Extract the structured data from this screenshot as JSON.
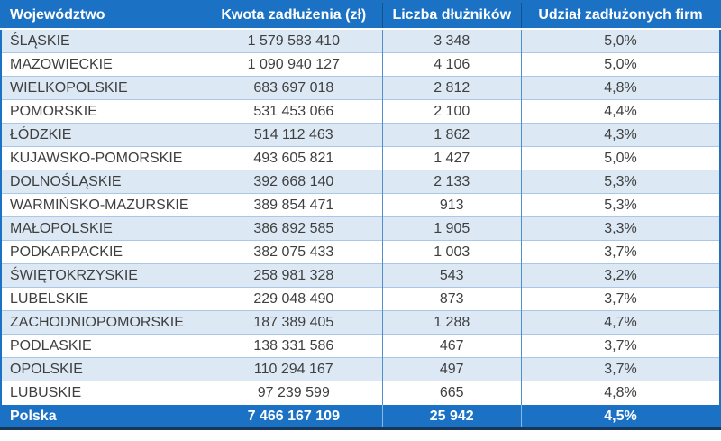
{
  "chart_data": {
    "type": "table",
    "columns": [
      "Województwo",
      "Kwota zadłużenia (zł)",
      "Liczba dłużników",
      "Udział zadłużonych firm"
    ],
    "rows": [
      [
        "ŚLĄSKIE",
        "1 579 583 410",
        "3 348",
        "5,0%"
      ],
      [
        "MAZOWIECKIE",
        "1 090 940 127",
        "4 106",
        "5,0%"
      ],
      [
        "WIELKOPOLSKIE",
        "683 697 018",
        "2 812",
        "4,8%"
      ],
      [
        "POMORSKIE",
        "531 453 066",
        "2 100",
        "4,4%"
      ],
      [
        "ŁÓDZKIE",
        "514 112 463",
        "1 862",
        "4,3%"
      ],
      [
        "KUJAWSKO-POMORSKIE",
        "493 605 821",
        "1 427",
        "5,0%"
      ],
      [
        "DOLNOŚLĄSKIE",
        "392 668 140",
        "2 133",
        "5,3%"
      ],
      [
        "WARMIŃSKO-MAZURSKIE",
        "389 854 471",
        "913",
        "5,3%"
      ],
      [
        "MAŁOPOLSKIE",
        "386 892 585",
        "1 905",
        "3,3%"
      ],
      [
        "PODKARPACKIE",
        "382 075 433",
        "1 003",
        "3,7%"
      ],
      [
        "ŚWIĘTOKRZYSKIE",
        "258 981 328",
        "543",
        "3,2%"
      ],
      [
        "LUBELSKIE",
        "229 048 490",
        "873",
        "3,7%"
      ],
      [
        "ZACHODNIOPOMORSKIE",
        "187 389 405",
        "1 288",
        "4,7%"
      ],
      [
        "PODLASKIE",
        "138 331 586",
        "467",
        "3,7%"
      ],
      [
        "OPOLSKIE",
        "110 294 167",
        "497",
        "3,7%"
      ],
      [
        "LUBUSKIE",
        "97 239 599",
        "665",
        "4,8%"
      ]
    ],
    "total_row": [
      "Polska",
      "7 466 167 109",
      "25 942",
      "4,5%"
    ],
    "colors": {
      "header_bg": "#1B72C4",
      "header_text": "#FFFFFF",
      "stripe_bg": "#DCE9F5",
      "row_border": "#A9C7E8",
      "column_divider": "#4E8FD0",
      "header_divider": "#155089",
      "total_divider": "#8AB7E3",
      "bottom_border": "#16375C",
      "body_text": "#3F3F3F"
    }
  }
}
